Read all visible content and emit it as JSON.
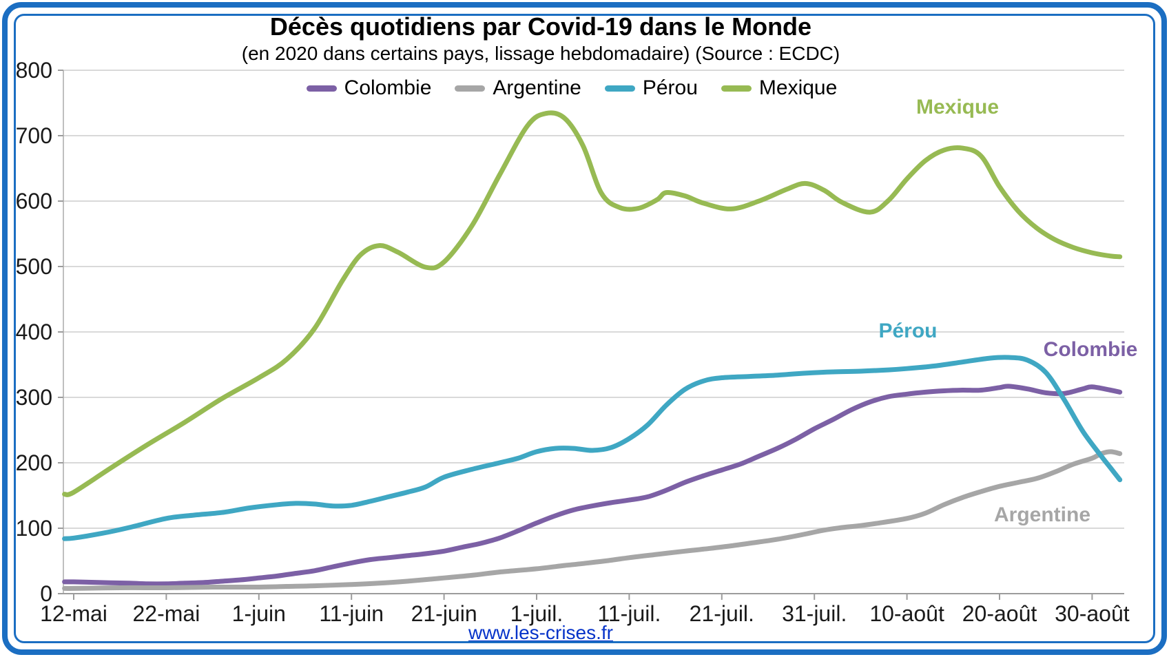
{
  "title": "Décès quotidiens par Covid-19 dans le Monde",
  "subtitle": "(en 2020 dans certains pays, lissage hebdomadaire) (Source : ECDC)",
  "footer": {
    "link_text": "www.les-crises.fr"
  },
  "frame_color": "#1B6EC2",
  "annotations": {
    "mexique": {
      "text": "Mexique",
      "color": "#97BA53"
    },
    "perou": {
      "text": "Pérou",
      "color": "#3FA7C3"
    },
    "colombie": {
      "text": "Colombie",
      "color": "#7C60A5"
    },
    "argentine": {
      "text": "Argentine",
      "color": "#A6A6A6"
    }
  },
  "chart_data": {
    "type": "line",
    "title": "Décès quotidiens par Covid-19 dans le Monde",
    "subtitle": "(en 2020 dans certains pays, lissage hebdomadaire) (Source : ECDC)",
    "grid": "horizontal",
    "legend_position": "top",
    "x_axis": {
      "unit": "date (jours depuis le 12 mai 2020)",
      "tick_labels": [
        "12-mai",
        "22-mai",
        "1-juin",
        "11-juin",
        "21-juin",
        "1-juil.",
        "11-juil.",
        "21-juil.",
        "31-juil.",
        "10-août",
        "20-août",
        "30-août"
      ],
      "tick_days": [
        0,
        10,
        20,
        30,
        40,
        50,
        60,
        70,
        80,
        90,
        100,
        110
      ]
    },
    "y_axis": {
      "min": 0,
      "max": 800,
      "step": 100,
      "tick_labels": [
        "0",
        "100",
        "200",
        "300",
        "400",
        "500",
        "600",
        "700",
        "800"
      ]
    },
    "series": [
      {
        "name": "Colombie",
        "color": "#7C60A5",
        "points": [
          [
            -1,
            18
          ],
          [
            0,
            18
          ],
          [
            3,
            17
          ],
          [
            6,
            16
          ],
          [
            8,
            15
          ],
          [
            10,
            15
          ],
          [
            12,
            16
          ],
          [
            14,
            17
          ],
          [
            16,
            19
          ],
          [
            18,
            21
          ],
          [
            20,
            24
          ],
          [
            22,
            27
          ],
          [
            24,
            31
          ],
          [
            26,
            35
          ],
          [
            28,
            41
          ],
          [
            30,
            47
          ],
          [
            32,
            52
          ],
          [
            34,
            55
          ],
          [
            36,
            58
          ],
          [
            38,
            61
          ],
          [
            40,
            65
          ],
          [
            42,
            71
          ],
          [
            44,
            77
          ],
          [
            46,
            85
          ],
          [
            48,
            96
          ],
          [
            50,
            108
          ],
          [
            52,
            119
          ],
          [
            54,
            128
          ],
          [
            56,
            134
          ],
          [
            58,
            139
          ],
          [
            60,
            143
          ],
          [
            62,
            148
          ],
          [
            64,
            158
          ],
          [
            66,
            170
          ],
          [
            68,
            180
          ],
          [
            70,
            189
          ],
          [
            72,
            198
          ],
          [
            74,
            210
          ],
          [
            76,
            222
          ],
          [
            78,
            236
          ],
          [
            80,
            252
          ],
          [
            82,
            266
          ],
          [
            84,
            281
          ],
          [
            86,
            293
          ],
          [
            88,
            301
          ],
          [
            90,
            305
          ],
          [
            92,
            308
          ],
          [
            94,
            310
          ],
          [
            96,
            311
          ],
          [
            98,
            311
          ],
          [
            100,
            315
          ],
          [
            101,
            317
          ],
          [
            103,
            313
          ],
          [
            105,
            307
          ],
          [
            107,
            306
          ],
          [
            109,
            313
          ],
          [
            110,
            316
          ],
          [
            112,
            311
          ],
          [
            113,
            308
          ]
        ]
      },
      {
        "name": "Argentine",
        "color": "#A6A6A6",
        "points": [
          [
            -1,
            8
          ],
          [
            0,
            8
          ],
          [
            5,
            9
          ],
          [
            10,
            9
          ],
          [
            15,
            10
          ],
          [
            20,
            10
          ],
          [
            23,
            11
          ],
          [
            26,
            12
          ],
          [
            30,
            14
          ],
          [
            33,
            16
          ],
          [
            36,
            19
          ],
          [
            40,
            24
          ],
          [
            43,
            28
          ],
          [
            46,
            33
          ],
          [
            50,
            38
          ],
          [
            53,
            43
          ],
          [
            55,
            46
          ],
          [
            58,
            51
          ],
          [
            60,
            55
          ],
          [
            63,
            60
          ],
          [
            66,
            65
          ],
          [
            68,
            68
          ],
          [
            71,
            73
          ],
          [
            74,
            79
          ],
          [
            76,
            83
          ],
          [
            79,
            91
          ],
          [
            81,
            97
          ],
          [
            83,
            101
          ],
          [
            85,
            104
          ],
          [
            87,
            108
          ],
          [
            90,
            115
          ],
          [
            92,
            123
          ],
          [
            94,
            136
          ],
          [
            96,
            147
          ],
          [
            98,
            156
          ],
          [
            100,
            164
          ],
          [
            102,
            170
          ],
          [
            104,
            176
          ],
          [
            106,
            186
          ],
          [
            108,
            198
          ],
          [
            110,
            207
          ],
          [
            111,
            214
          ],
          [
            112,
            217
          ],
          [
            113,
            214
          ]
        ]
      },
      {
        "name": "Pérou",
        "color": "#3FA7C3",
        "points": [
          [
            -1,
            84
          ],
          [
            0,
            85
          ],
          [
            3,
            92
          ],
          [
            6,
            101
          ],
          [
            10,
            115
          ],
          [
            13,
            120
          ],
          [
            16,
            124
          ],
          [
            19,
            131
          ],
          [
            22,
            136
          ],
          [
            24,
            138
          ],
          [
            26,
            137
          ],
          [
            28,
            134
          ],
          [
            30,
            135
          ],
          [
            32,
            141
          ],
          [
            34,
            148
          ],
          [
            36,
            155
          ],
          [
            38,
            163
          ],
          [
            40,
            178
          ],
          [
            43,
            190
          ],
          [
            46,
            200
          ],
          [
            48,
            207
          ],
          [
            50,
            217
          ],
          [
            52,
            222
          ],
          [
            54,
            222
          ],
          [
            56,
            219
          ],
          [
            58,
            223
          ],
          [
            60,
            237
          ],
          [
            62,
            258
          ],
          [
            64,
            288
          ],
          [
            66,
            312
          ],
          [
            68,
            325
          ],
          [
            70,
            330
          ],
          [
            73,
            332
          ],
          [
            76,
            334
          ],
          [
            79,
            337
          ],
          [
            82,
            339
          ],
          [
            85,
            340
          ],
          [
            88,
            342
          ],
          [
            90,
            344
          ],
          [
            93,
            348
          ],
          [
            96,
            354
          ],
          [
            99,
            360
          ],
          [
            101,
            361
          ],
          [
            103,
            357
          ],
          [
            105,
            338
          ],
          [
            107,
            296
          ],
          [
            109,
            248
          ],
          [
            111,
            210
          ],
          [
            112,
            192
          ],
          [
            113,
            174
          ]
        ]
      },
      {
        "name": "Mexique",
        "color": "#97BA53",
        "points": [
          [
            -1,
            152
          ],
          [
            0,
            155
          ],
          [
            4,
            192
          ],
          [
            8,
            228
          ],
          [
            12,
            262
          ],
          [
            16,
            298
          ],
          [
            20,
            330
          ],
          [
            23,
            358
          ],
          [
            26,
            405
          ],
          [
            29,
            478
          ],
          [
            31,
            518
          ],
          [
            33,
            532
          ],
          [
            35,
            522
          ],
          [
            38,
            499
          ],
          [
            40,
            507
          ],
          [
            43,
            562
          ],
          [
            46,
            640
          ],
          [
            49,
            715
          ],
          [
            51,
            734
          ],
          [
            53,
            727
          ],
          [
            55,
            685
          ],
          [
            57,
            612
          ],
          [
            59,
            590
          ],
          [
            61,
            589
          ],
          [
            63,
            602
          ],
          [
            64,
            613
          ],
          [
            66,
            608
          ],
          [
            68,
            597
          ],
          [
            71,
            588
          ],
          [
            74,
            600
          ],
          [
            77,
            618
          ],
          [
            79,
            627
          ],
          [
            81,
            617
          ],
          [
            83,
            598
          ],
          [
            86,
            583
          ],
          [
            88,
            601
          ],
          [
            90,
            634
          ],
          [
            92,
            662
          ],
          [
            94,
            678
          ],
          [
            96,
            681
          ],
          [
            98,
            669
          ],
          [
            100,
            622
          ],
          [
            102,
            585
          ],
          [
            104,
            559
          ],
          [
            106,
            541
          ],
          [
            108,
            529
          ],
          [
            110,
            521
          ],
          [
            112,
            516
          ],
          [
            113,
            515
          ]
        ]
      }
    ]
  }
}
